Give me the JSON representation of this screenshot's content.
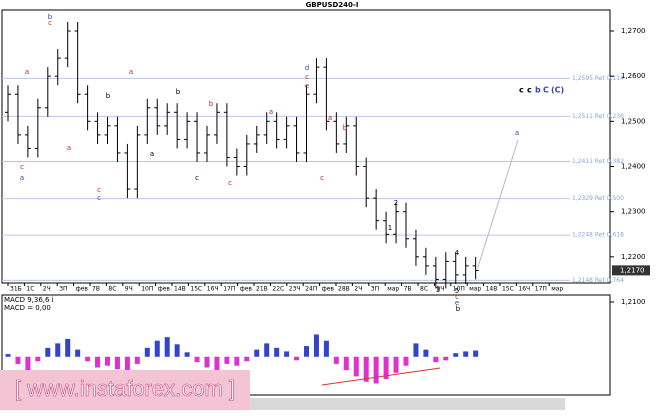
{
  "chart_data": {
    "type": "ohlc",
    "title": "GBPUSD240-I",
    "color": "#000000",
    "ylim": [
      1.21,
      1.27465
    ],
    "yticks": [
      {
        "value": 1.27,
        "label": "1,2700"
      },
      {
        "value": 1.26,
        "label": "1,2600"
      },
      {
        "value": 1.25,
        "label": "1,2500"
      },
      {
        "value": 1.24,
        "label": "1,2400"
      },
      {
        "value": 1.23,
        "label": "1,2300"
      },
      {
        "value": 1.22,
        "label": "1,2200"
      },
      {
        "value": 1.21,
        "label": "1,2100"
      }
    ],
    "current_price": {
      "value": 1.217,
      "label": "1,2170"
    },
    "fib_levels": [
      {
        "value": 1.2595,
        "label": "1,2595 Ret 0,114"
      },
      {
        "value": 1.2511,
        "label": "1,2511 Ret 0,236"
      },
      {
        "value": 1.2411,
        "label": "1,2411 Ret 0,382"
      },
      {
        "value": 1.2329,
        "label": "1,2329 Ret 0,500"
      },
      {
        "value": 1.2248,
        "label": "1,2248 Ret 0,618"
      },
      {
        "value": 1.2148,
        "label": "1,2148 Ret 0,764"
      }
    ],
    "dates": [
      "31Б",
      "1С",
      "2Ч",
      "3П",
      "фев",
      "7В",
      "8С",
      "9Ч",
      "10П",
      "фев",
      "14В",
      "15С",
      "16Ч",
      "17П",
      "фев",
      "21В",
      "22С",
      "23Ч",
      "24П",
      "фев",
      "28В",
      "2Ч",
      "3П",
      "мар",
      "7В",
      "8С",
      "9Ч",
      "10П",
      "мар",
      "14В",
      "15С",
      "16Ч",
      "17П",
      "мар"
    ],
    "ohlc": [
      [
        1.252,
        1.258,
        1.25,
        1.256
      ],
      [
        1.256,
        1.258,
        1.245,
        1.247
      ],
      [
        1.247,
        1.249,
        1.242,
        1.244
      ],
      [
        1.244,
        1.255,
        1.242,
        1.253
      ],
      [
        1.253,
        1.262,
        1.251,
        1.26
      ],
      [
        1.26,
        1.266,
        1.258,
        1.264
      ],
      [
        1.264,
        1.272,
        1.262,
        1.27
      ],
      [
        1.27,
        1.272,
        1.254,
        1.256
      ],
      [
        1.256,
        1.258,
        1.248,
        1.25
      ],
      [
        1.25,
        1.252,
        1.245,
        1.247
      ],
      [
        1.247,
        1.251,
        1.245,
        1.249
      ],
      [
        1.249,
        1.251,
        1.241,
        1.243
      ],
      [
        1.243,
        1.245,
        1.233,
        1.235
      ],
      [
        1.235,
        1.249,
        1.233,
        1.247
      ],
      [
        1.247,
        1.255,
        1.245,
        1.253
      ],
      [
        1.253,
        1.255,
        1.247,
        1.249
      ],
      [
        1.249,
        1.254,
        1.247,
        1.252
      ],
      [
        1.252,
        1.254,
        1.244,
        1.246
      ],
      [
        1.246,
        1.252,
        1.244,
        1.25
      ],
      [
        1.25,
        1.252,
        1.241,
        1.243
      ],
      [
        1.243,
        1.249,
        1.241,
        1.247
      ],
      [
        1.247,
        1.254,
        1.245,
        1.252
      ],
      [
        1.252,
        1.254,
        1.24,
        1.242
      ],
      [
        1.242,
        1.244,
        1.238,
        1.24
      ],
      [
        1.24,
        1.247,
        1.238,
        1.245
      ],
      [
        1.245,
        1.249,
        1.243,
        1.247
      ],
      [
        1.247,
        1.252,
        1.245,
        1.25
      ],
      [
        1.25,
        1.252,
        1.244,
        1.246
      ],
      [
        1.246,
        1.251,
        1.244,
        1.249
      ],
      [
        1.249,
        1.251,
        1.241,
        1.243
      ],
      [
        1.243,
        1.258,
        1.241,
        1.256
      ],
      [
        1.256,
        1.264,
        1.254,
        1.262
      ],
      [
        1.262,
        1.264,
        1.248,
        1.25
      ],
      [
        1.25,
        1.252,
        1.243,
        1.245
      ],
      [
        1.245,
        1.251,
        1.243,
        1.249
      ],
      [
        1.249,
        1.251,
        1.238,
        1.24
      ],
      [
        1.24,
        1.242,
        1.231,
        1.233
      ],
      [
        1.233,
        1.235,
        1.226,
        1.228
      ],
      [
        1.228,
        1.23,
        1.223,
        1.225
      ],
      [
        1.225,
        1.232,
        1.223,
        1.23
      ],
      [
        1.23,
        1.232,
        1.222,
        1.224
      ],
      [
        1.224,
        1.226,
        1.218,
        1.22
      ],
      [
        1.22,
        1.222,
        1.216,
        1.218
      ],
      [
        1.218,
        1.22,
        1.213,
        1.215
      ],
      [
        1.215,
        1.221,
        1.213,
        1.219
      ],
      [
        1.219,
        1.221,
        1.214,
        1.216
      ],
      [
        1.216,
        1.22,
        1.214,
        1.218
      ],
      [
        1.218,
        1.22,
        1.215,
        1.217
      ]
    ],
    "annotations": [
      {
        "text": "b",
        "color": "#3344bb"
      },
      {
        "text": "c",
        "color": "#cc2222"
      },
      {
        "text": "a",
        "color": "#cc2222"
      },
      {
        "text": "c",
        "color": "#cc2222"
      },
      {
        "text": "a",
        "color": "#3344bb"
      },
      {
        "text": "a",
        "color": "#cc2222"
      },
      {
        "text": "a",
        "color": "#cc2222"
      },
      {
        "text": "b",
        "color": "#000000"
      },
      {
        "text": "c",
        "color": "#cc2222"
      },
      {
        "text": "c",
        "color": "#3344bb"
      },
      {
        "text": "a",
        "color": "#000000"
      },
      {
        "text": "b",
        "color": "#000000"
      },
      {
        "text": "b",
        "color": "#cc2222"
      },
      {
        "text": "c",
        "color": "#000000"
      },
      {
        "text": "c",
        "color": "#cc2222"
      },
      {
        "text": "a",
        "color": "#cc2222"
      },
      {
        "text": "d",
        "color": "#3344bb"
      },
      {
        "text": "c",
        "color": "#cc2222"
      },
      {
        "text": "e",
        "color": "#cc2222"
      },
      {
        "text": "a",
        "color": "#cc2222"
      },
      {
        "text": "b",
        "color": "#cc2222"
      },
      {
        "text": "c",
        "color": "#cc2222"
      },
      {
        "text": "2",
        "color": "#000000"
      },
      {
        "text": "1",
        "color": "#000000"
      },
      {
        "text": "3",
        "color": "#000000"
      },
      {
        "text": "4",
        "color": "#000000"
      },
      {
        "text": "5",
        "color": "#000000"
      },
      {
        "text": "c",
        "color": "#cc2222"
      },
      {
        "text": "e",
        "color": "#3344bb"
      },
      {
        "text": "b",
        "color": "#000000"
      },
      {
        "text": "a",
        "color": "#3344bb"
      }
    ],
    "wave_legend": [
      {
        "text": "c",
        "color": "#000000"
      },
      {
        "text": "c",
        "color": "#000000"
      },
      {
        "text": "b",
        "color": "#3344bb"
      },
      {
        "text": "C",
        "color": "#3344bb"
      },
      {
        "text": "(C)",
        "color": "#3344bb"
      }
    ],
    "macd": {
      "label": "MACD 9,36,6 i",
      "value_label": "MACD = 0,00",
      "positive_color": "#3344cc",
      "negative_color": "#dd33cc",
      "ylim": [
        -35,
        30
      ],
      "values": [
        3,
        -8,
        -15,
        -5,
        10,
        15,
        20,
        8,
        -5,
        -12,
        -10,
        -14,
        -20,
        -8,
        10,
        18,
        22,
        14,
        5,
        -6,
        -12,
        -15,
        -8,
        -10,
        -5,
        8,
        15,
        10,
        6,
        -4,
        12,
        25,
        18,
        -8,
        -15,
        -22,
        -28,
        -30,
        -25,
        -18,
        -10,
        15,
        8,
        -6,
        -4,
        4,
        6,
        7
      ]
    },
    "watermark": "[ www.instaforex.com ]"
  }
}
